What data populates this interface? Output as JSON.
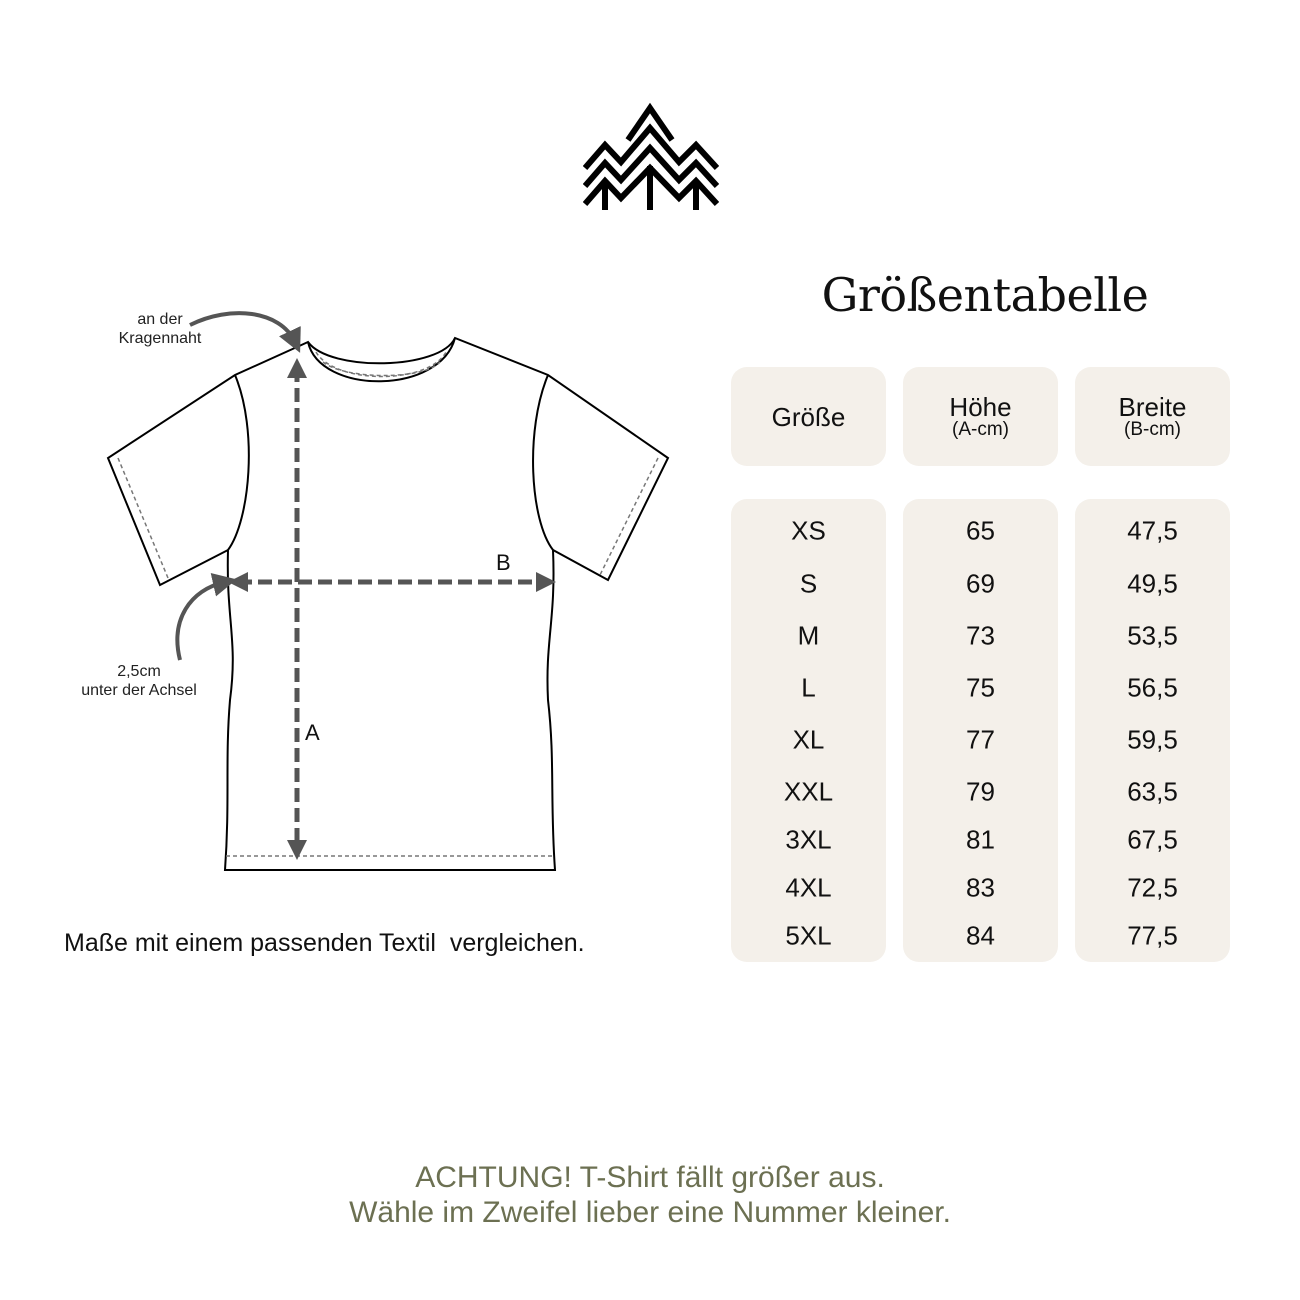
{
  "logo": {
    "icon": "pine-trees-logo"
  },
  "title": "Größentabelle",
  "table": {
    "headers": [
      {
        "label": "Größe",
        "sub": ""
      },
      {
        "label": "Höhe",
        "sub": "(A-cm)"
      },
      {
        "label": "Breite",
        "sub": "(B-cm)"
      }
    ],
    "rows": [
      [
        "XS",
        "65",
        "47,5"
      ],
      [
        "S",
        "69",
        "49,5"
      ],
      [
        "M",
        "73",
        "53,5"
      ],
      [
        "L",
        "75",
        "56,5"
      ],
      [
        "XL",
        "77",
        "59,5"
      ],
      [
        "XXL",
        "79",
        "63,5"
      ],
      [
        "3XL",
        "81",
        "67,5"
      ],
      [
        "4XL",
        "83",
        "72,5"
      ],
      [
        "5XL",
        "84",
        "77,5"
      ]
    ]
  },
  "diagram": {
    "collar_note": [
      "an der",
      "Kragennaht"
    ],
    "armpit_note": [
      "2,5cm",
      "unter der Achsel"
    ],
    "label_a": "A",
    "label_b": "B"
  },
  "compare_note": "Maße mit einem passenden Textil  vergleichen.",
  "warning": [
    "ACHTUNG! T-Shirt fällt größer aus.",
    "Wähle im Zweifel lieber eine Nummer kleiner."
  ],
  "colors": {
    "card": "#f4f0ea",
    "warning": "#6c7052",
    "arrow": "#555555"
  }
}
